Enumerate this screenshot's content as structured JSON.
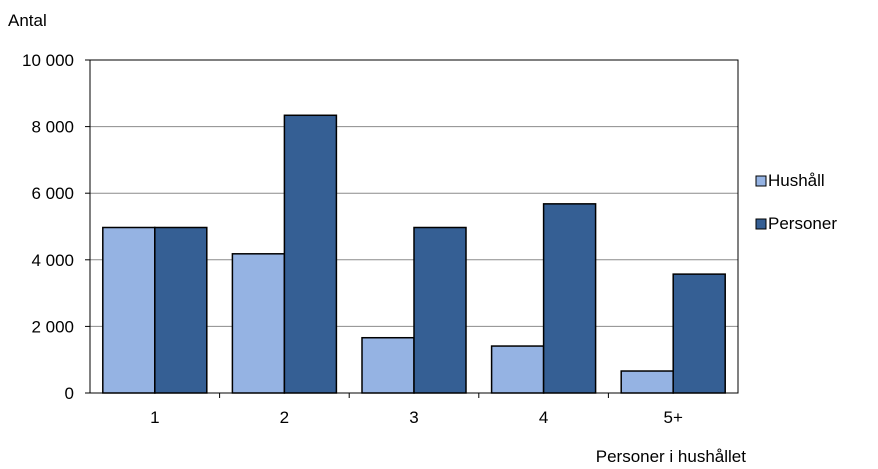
{
  "chart_data": {
    "type": "bar",
    "ylabel": "Antal",
    "xlabel": "Personer i hushållet",
    "categories": [
      "1",
      "2",
      "3",
      "4",
      "5+"
    ],
    "series": [
      {
        "name": "Hushåll",
        "color": "#95B3E3",
        "values": [
          4970,
          4180,
          1660,
          1410,
          660
        ]
      },
      {
        "name": "Personer",
        "color": "#355F94",
        "values": [
          4970,
          8340,
          4970,
          5680,
          3570
        ]
      }
    ],
    "ylim": [
      0,
      10000
    ],
    "yticks": [
      0,
      2000,
      4000,
      6000,
      8000,
      10000
    ],
    "ytick_labels": [
      "0",
      "2 000",
      "4 000",
      "6 000",
      "8 000",
      "10 000"
    ],
    "grid": true,
    "legend_position": "right"
  }
}
